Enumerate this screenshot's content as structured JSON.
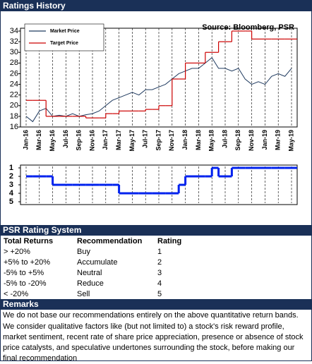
{
  "header": {
    "title": "Ratings History"
  },
  "chart_data": [
    {
      "type": "line",
      "annotation": "Source: Bloomberg, PSR",
      "categories": [
        "Jan-16",
        null,
        "Mar-16",
        null,
        "May-16",
        null,
        "Jul-16",
        null,
        "Sep-16",
        null,
        "Nov-16",
        null,
        "Jan-17",
        null,
        "Mar-17",
        null,
        "May-17",
        null,
        "Jul-17",
        null,
        "Sep-17",
        null,
        "Nov-17",
        null,
        "Jan-18",
        null,
        "Mar-18",
        null,
        "May-18",
        null,
        "Jul-18",
        null,
        "Sep-18",
        null,
        "Nov-18",
        null,
        "Jan-19",
        null,
        "Mar-19",
        null,
        "May-19"
      ],
      "series": [
        {
          "name": "Market Price",
          "color": "#1f3a5f",
          "step": false,
          "values": [
            18,
            17,
            19,
            19.5,
            18,
            18.2,
            18,
            18.5,
            18,
            18.3,
            18.5,
            19,
            20,
            21,
            21.5,
            22,
            22.5,
            22,
            23,
            23,
            23.5,
            24,
            25,
            26,
            26.5,
            27,
            27,
            28,
            29,
            27,
            27,
            26.5,
            27,
            25,
            24,
            24.5,
            24,
            25.5,
            26,
            25.5,
            27
          ]
        },
        {
          "name": "Target Price",
          "color": "#cc0000",
          "step": true,
          "values": [
            21,
            21,
            21,
            18,
            18,
            18,
            18,
            18,
            18,
            17.7,
            17.7,
            17.7,
            18.5,
            18.5,
            19,
            19,
            19,
            19,
            19.3,
            19.3,
            20,
            20,
            25,
            25,
            28,
            28,
            28,
            30,
            30,
            32,
            32,
            34,
            34,
            34,
            32.5,
            32.5,
            32.5,
            32.5,
            32.5,
            32.5,
            32.5
          ]
        }
      ],
      "ylim": [
        16,
        34
      ],
      "yticks": [
        16,
        18,
        20,
        22,
        24,
        26,
        28,
        30,
        32,
        34
      ],
      "grid": true,
      "legend": "top-left"
    },
    {
      "type": "step",
      "inverted": true,
      "series": [
        {
          "color": "#0022ee",
          "values": [
            2,
            2,
            2,
            2,
            3,
            3,
            3,
            3,
            3,
            3,
            3,
            3,
            3,
            3,
            4,
            4,
            4,
            4,
            4,
            4,
            4,
            4,
            4,
            3,
            2,
            2,
            2,
            2,
            1,
            2,
            2,
            1,
            1,
            1,
            1,
            1,
            1,
            1,
            1,
            1,
            1
          ]
        }
      ],
      "ylim": [
        1,
        5
      ],
      "yticks": [
        1,
        2,
        3,
        4,
        5
      ],
      "grid": true
    }
  ],
  "rating_system": {
    "title": "PSR Rating System",
    "columns": [
      "Total Returns",
      "Recommendation",
      "Rating"
    ],
    "rows": [
      [
        "> +20%",
        "Buy",
        "1"
      ],
      [
        "+5% to +20%",
        "Accumulate",
        "2"
      ],
      [
        "-5% to +5%",
        "Neutral",
        "3"
      ],
      [
        "-5% to -20%",
        "Reduce",
        "4"
      ],
      [
        "< -20%",
        "Sell",
        "5"
      ]
    ]
  },
  "remarks": {
    "title": "Remarks",
    "lines": [
      "We do not base our recommendations entirely on the  above quantitative return bands.",
      "We consider qualitative factors like (but not limited to) a stock's risk reward profile, market sentiment, recent rate of share price appreciation, presence or absence of stock price catalysts, and speculative undertones surrounding the stock, before making our final recommendation"
    ]
  }
}
